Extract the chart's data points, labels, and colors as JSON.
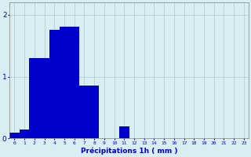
{
  "categories": [
    0,
    1,
    2,
    3,
    4,
    5,
    6,
    7,
    8,
    9,
    10,
    11,
    12,
    13,
    14,
    15,
    16,
    17,
    18,
    19,
    20,
    21,
    22,
    23
  ],
  "values": [
    0.1,
    0.15,
    1.3,
    1.3,
    1.75,
    1.8,
    1.8,
    0.85,
    0.85,
    0.0,
    0.0,
    0.2,
    0.0,
    0.0,
    0.0,
    0.0,
    0.0,
    0.0,
    0.0,
    0.0,
    0.0,
    0.0,
    0.0,
    0.0
  ],
  "bar_color": "#0000cc",
  "bg_color": "#d8eef0",
  "grid_color": "#b0c8cc",
  "xlabel": "Précipitations 1h ( mm )",
  "xlabel_color": "#0000cc",
  "tick_color": "#0000cc",
  "ylim": [
    0,
    2.2
  ],
  "yticks": [
    0,
    1,
    2
  ],
  "figsize": [
    3.2,
    2.0
  ],
  "dpi": 100
}
